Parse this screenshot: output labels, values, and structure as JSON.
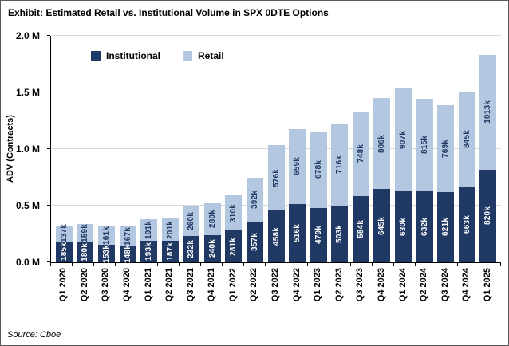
{
  "exhibit": {
    "title": "Exhibit: Estimated Retail vs. Institutional Volume in SPX 0DTE Options",
    "source": "Source: Cboe"
  },
  "chart_data": {
    "type": "bar",
    "stacked": true,
    "title": "Exhibit: Estimated Retail vs. Institutional Volume in SPX 0DTE Options",
    "xlabel": "",
    "ylabel": "ADV (Contracts)",
    "ylim": [
      0,
      2000000
    ],
    "ytick_labels": [
      "0.0 M",
      "0.5 M",
      "1.0 M",
      "1.5 M",
      "2.0 M"
    ],
    "grid": true,
    "legend_position": "inside-top-left",
    "categories": [
      "Q1 2020",
      "Q2 2020",
      "Q3 2020",
      "Q4 2020",
      "Q1 2021",
      "Q2 2021",
      "Q3 2021",
      "Q4 2021",
      "Q1 2022",
      "Q2 2022",
      "Q3 2022",
      "Q4 2022",
      "Q1 2023",
      "Q2 2023",
      "Q3 2023",
      "Q4 2023",
      "Q1 2024",
      "Q2 2024",
      "Q3 2024",
      "Q4 2024",
      "Q1 2025"
    ],
    "series": [
      {
        "name": "Institutional",
        "color": "#1F3864",
        "label_color": "#FFFFFF",
        "values_k": [
          185,
          180,
          153,
          148,
          193,
          187,
          232,
          240,
          281,
          357,
          458,
          516,
          479,
          503,
          584,
          645,
          630,
          632,
          621,
          663,
          820
        ],
        "labels": [
          "185k",
          "180k",
          "153k",
          "148k",
          "193k",
          "187k",
          "232k",
          "240k",
          "281k",
          "357k",
          "458k",
          "516k",
          "479k",
          "503k",
          "584k",
          "645k",
          "630k",
          "632k",
          "621k",
          "663k",
          "820k"
        ]
      },
      {
        "name": "Retail",
        "color": "#B4C7E0",
        "label_color": "#1F3864",
        "values_k": [
          137,
          159,
          161,
          167,
          191,
          201,
          260,
          280,
          310,
          392,
          576,
          659,
          678,
          716,
          748,
          806,
          907,
          815,
          769,
          845,
          1013
        ],
        "labels": [
          "137k",
          "159k",
          "161k",
          "167k",
          "191k",
          "201k",
          "260k",
          "280k",
          "310k",
          "392k",
          "576k",
          "659k",
          "678k",
          "716k",
          "748k",
          "806k",
          "907k",
          "815k",
          "769k",
          "845k",
          "1013k"
        ]
      }
    ]
  }
}
